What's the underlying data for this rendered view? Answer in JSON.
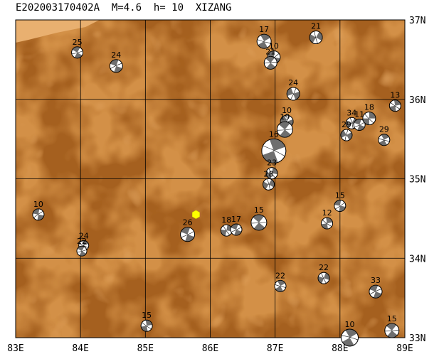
{
  "title": "E202003170402A  M=4.6  h= 10  XIZANG",
  "colors": {
    "terrain_low": "#a5601f",
    "terrain_high": "#d38e41",
    "terrain_peak": "#e0a460",
    "grid": "#000000",
    "epicenter": "#ffff00",
    "beach_dark": "#6e6e6e",
    "beach_light": "#ffffff"
  },
  "map": {
    "lon_range": [
      83,
      89
    ],
    "lat_range": [
      33,
      37
    ],
    "lon_ticks": [
      "83E",
      "84E",
      "85E",
      "86E",
      "87E",
      "88E",
      "89E"
    ],
    "lat_ticks": [
      "33N",
      "34N",
      "35N",
      "36N",
      "37N"
    ]
  },
  "epicenter": {
    "lon": 85.78,
    "lat": 34.55,
    "icon": "yellow-hexagon-icon"
  },
  "mechanisms": [
    {
      "label": "25",
      "lon": 83.95,
      "lat": 36.59,
      "size": 8,
      "rot": 30
    },
    {
      "label": "24",
      "lon": 84.55,
      "lat": 36.42,
      "size": 9,
      "rot": 200
    },
    {
      "label": "17",
      "lon": 86.83,
      "lat": 36.73,
      "size": 10,
      "rot": 60
    },
    {
      "label": "21",
      "lon": 87.63,
      "lat": 36.78,
      "size": 9,
      "rot": 120
    },
    {
      "label": "10",
      "lon": 86.98,
      "lat": 36.53,
      "size": 9,
      "rot": 10
    },
    {
      "label": "21",
      "lon": 86.93,
      "lat": 36.46,
      "size": 9,
      "rot": 220
    },
    {
      "label": "24",
      "lon": 87.28,
      "lat": 36.07,
      "size": 9,
      "rot": 340
    },
    {
      "label": "13",
      "lon": 88.85,
      "lat": 35.92,
      "size": 8,
      "rot": 80
    },
    {
      "label": "10",
      "lon": 87.18,
      "lat": 35.72,
      "size": 9,
      "rot": 160
    },
    {
      "label": "19",
      "lon": 87.15,
      "lat": 35.62,
      "size": 11,
      "rot": 40
    },
    {
      "label": "16",
      "lon": 86.98,
      "lat": 35.35,
      "size": 17,
      "rot": 250
    },
    {
      "label": "34",
      "lon": 88.18,
      "lat": 35.7,
      "size": 8,
      "rot": 300
    },
    {
      "label": "11",
      "lon": 88.3,
      "lat": 35.68,
      "size": 8,
      "rot": 20
    },
    {
      "label": "18",
      "lon": 88.45,
      "lat": 35.76,
      "size": 9,
      "rot": 90
    },
    {
      "label": "29",
      "lon": 88.1,
      "lat": 35.55,
      "size": 8,
      "rot": 150
    },
    {
      "label": "29",
      "lon": 88.68,
      "lat": 35.49,
      "size": 8,
      "rot": 60
    },
    {
      "label": "23",
      "lon": 86.95,
      "lat": 35.07,
      "size": 8,
      "rot": 100
    },
    {
      "label": "28",
      "lon": 86.9,
      "lat": 34.93,
      "size": 8,
      "rot": 300
    },
    {
      "label": "15",
      "lon": 88.0,
      "lat": 34.66,
      "size": 8,
      "rot": 10
    },
    {
      "label": "12",
      "lon": 87.8,
      "lat": 34.44,
      "size": 8,
      "rot": 80
    },
    {
      "label": "10",
      "lon": 83.35,
      "lat": 34.55,
      "size": 8,
      "rot": 190
    },
    {
      "label": "26",
      "lon": 85.65,
      "lat": 34.3,
      "size": 10,
      "rot": 20
    },
    {
      "label": "18",
      "lon": 86.25,
      "lat": 34.35,
      "size": 8,
      "rot": 100
    },
    {
      "label": "17",
      "lon": 86.4,
      "lat": 34.36,
      "size": 8,
      "rot": 20
    },
    {
      "label": "15",
      "lon": 86.75,
      "lat": 34.45,
      "size": 11,
      "rot": 40
    },
    {
      "label": "24",
      "lon": 84.05,
      "lat": 34.16,
      "size": 7,
      "rot": 70
    },
    {
      "label": "22",
      "lon": 84.02,
      "lat": 34.09,
      "size": 7,
      "rot": 30
    },
    {
      "label": "22",
      "lon": 87.08,
      "lat": 33.65,
      "size": 8,
      "rot": 60
    },
    {
      "label": "22",
      "lon": 87.75,
      "lat": 33.75,
      "size": 8,
      "rot": 110
    },
    {
      "label": "33",
      "lon": 88.55,
      "lat": 33.58,
      "size": 9,
      "rot": 200
    },
    {
      "label": "15",
      "lon": 85.02,
      "lat": 33.15,
      "size": 8,
      "rot": 80
    },
    {
      "label": "10",
      "lon": 88.15,
      "lat": 33.0,
      "size": 12,
      "rot": 240
    },
    {
      "label": "15",
      "lon": 88.8,
      "lat": 33.09,
      "size": 10,
      "rot": 40
    }
  ]
}
